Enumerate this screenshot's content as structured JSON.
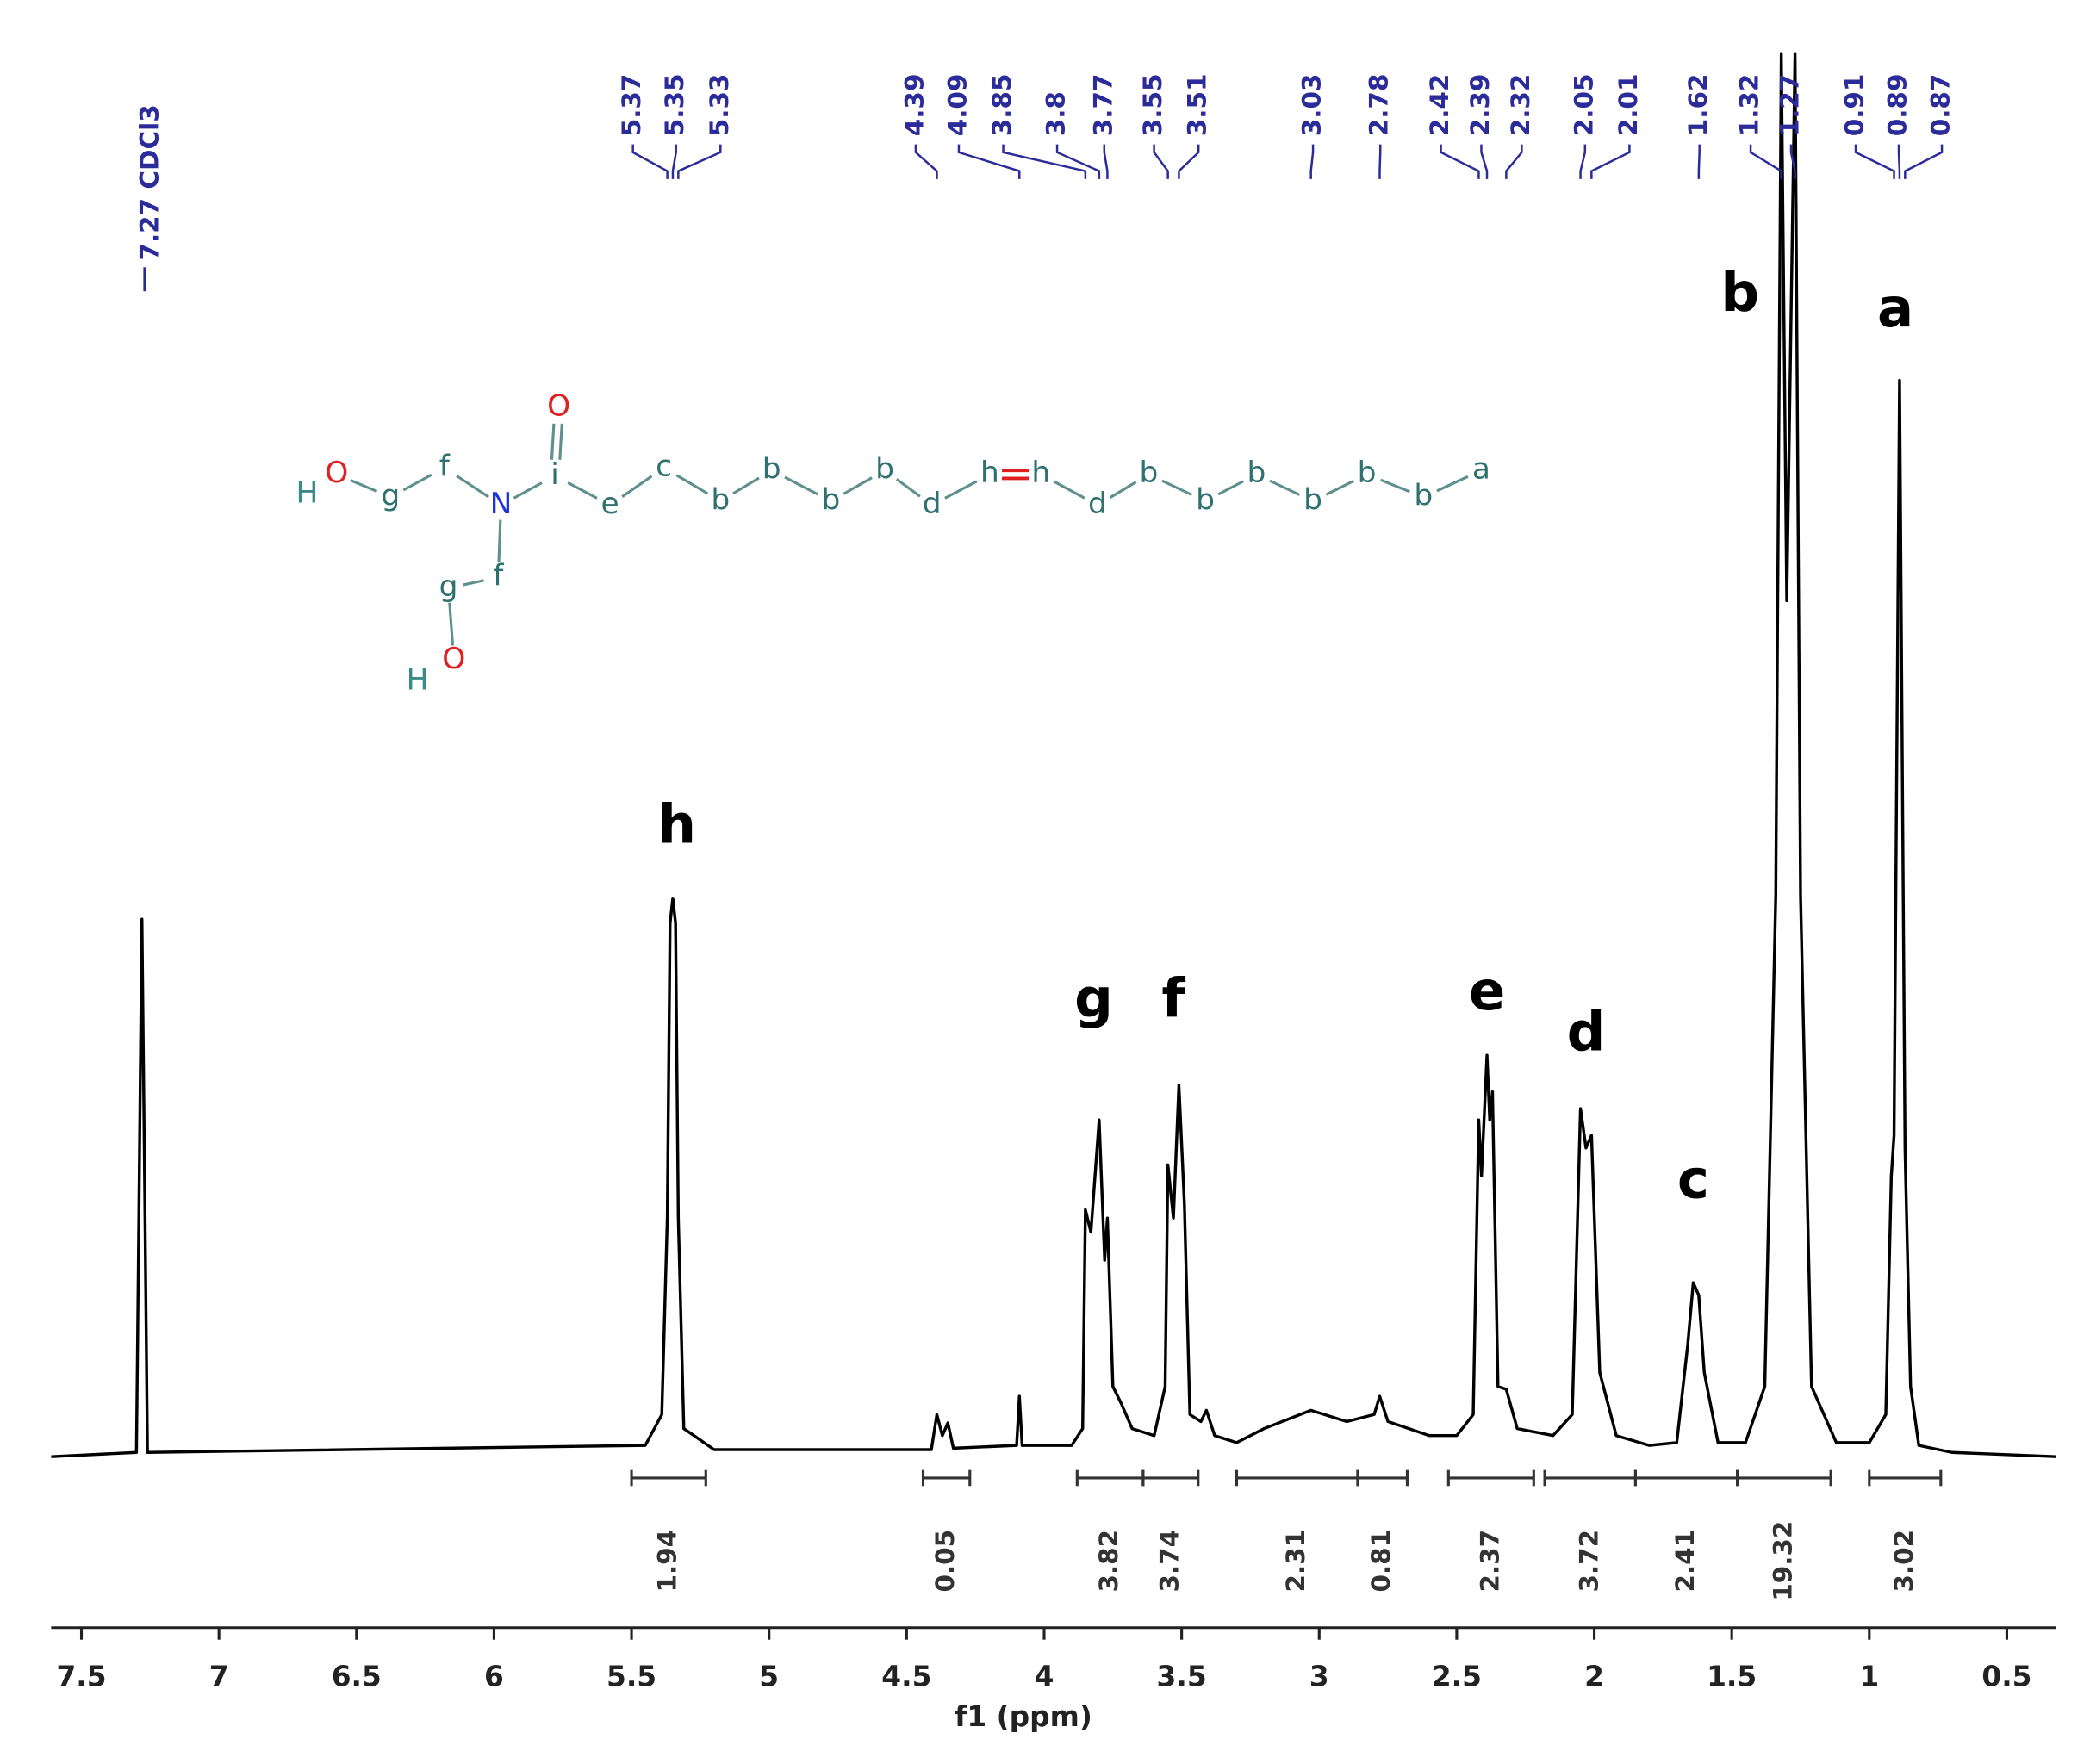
{
  "chart_data": {
    "type": "nmr",
    "x_label": "f1 (ppm)",
    "xlim": [
      7.61,
      0.32
    ],
    "xticks": [
      7.5,
      7.0,
      6.5,
      6.0,
      5.5,
      5.0,
      4.5,
      4.0,
      3.5,
      3.0,
      2.5,
      2.0,
      1.5,
      1.0,
      0.5
    ],
    "ylim": [
      0,
      100
    ],
    "color": "#000000",
    "x": [
      7.61,
      7.3,
      7.28,
      7.26,
      5.45,
      5.39,
      5.37,
      5.36,
      5.35,
      5.34,
      5.33,
      5.31,
      5.2,
      4.41,
      4.39,
      4.37,
      4.35,
      4.33,
      4.1,
      4.09,
      4.08,
      3.9,
      3.86,
      3.85,
      3.83,
      3.8,
      3.78,
      3.77,
      3.75,
      3.72,
      3.68,
      3.6,
      3.56,
      3.55,
      3.53,
      3.51,
      3.49,
      3.47,
      3.43,
      3.41,
      3.38,
      3.3,
      3.2,
      3.03,
      2.9,
      2.8,
      2.78,
      2.75,
      2.6,
      2.5,
      2.44,
      2.42,
      2.41,
      2.39,
      2.38,
      2.37,
      2.35,
      2.32,
      2.28,
      2.15,
      2.08,
      2.05,
      2.03,
      2.01,
      1.98,
      1.92,
      1.8,
      1.7,
      1.66,
      1.64,
      1.62,
      1.6,
      1.55,
      1.45,
      1.38,
      1.34,
      1.32,
      1.3,
      1.27,
      1.25,
      1.21,
      1.12,
      1.0,
      0.94,
      0.92,
      0.91,
      0.89,
      0.87,
      0.85,
      0.82,
      0.7,
      0.32
    ],
    "values": [
      0,
      0.3,
      38.3,
      0.3,
      0.8,
      3,
      17,
      38,
      39.8,
      38,
      17,
      2,
      0.5,
      0.5,
      3,
      1.5,
      2.4,
      0.6,
      0.8,
      4.3,
      0.8,
      0.8,
      2,
      17.6,
      16,
      24,
      14,
      17,
      5,
      3.8,
      2,
      1.5,
      5,
      20.8,
      17,
      26.5,
      18,
      3,
      2.5,
      3.3,
      1.5,
      1,
      2,
      3.3,
      2.5,
      3,
      4.3,
      2.5,
      1.5,
      1.5,
      3,
      24,
      20,
      28.6,
      24,
      26,
      5,
      4.8,
      2,
      1.5,
      3,
      24.8,
      22,
      22.9,
      6,
      1.5,
      0.8,
      1,
      8,
      12.4,
      11.5,
      6,
      1,
      1,
      5,
      40,
      100,
      61,
      100,
      40,
      5,
      1,
      1,
      3,
      20,
      22.9,
      76.7,
      21.9,
      5,
      0.8,
      0.3,
      0
    ],
    "peak_labels": [
      {
        "value": 7.27,
        "label": "7.27 CDCl3"
      },
      5.37,
      5.35,
      5.33,
      4.39,
      4.09,
      3.85,
      3.8,
      3.77,
      3.55,
      3.51,
      3.03,
      2.78,
      2.42,
      2.39,
      2.32,
      2.05,
      2.01,
      1.62,
      1.32,
      1.27,
      0.91,
      0.89,
      0.87
    ],
    "integrals": [
      {
        "from": 5.5,
        "to": 5.23,
        "value": 1.94
      },
      {
        "from": 4.44,
        "to": 4.27,
        "value": 0.05
      },
      {
        "from": 3.88,
        "to": 3.64,
        "value": 3.82
      },
      {
        "from": 3.64,
        "to": 3.44,
        "value": 3.74
      },
      {
        "from": 3.3,
        "to": 2.86,
        "value": 2.31
      },
      {
        "from": 2.86,
        "to": 2.68,
        "value": 0.81
      },
      {
        "from": 2.53,
        "to": 2.22,
        "value": 2.37
      },
      {
        "from": 2.18,
        "to": 1.85,
        "value": 3.72
      },
      {
        "from": 1.85,
        "to": 1.48,
        "value": 2.41
      },
      {
        "from": 1.48,
        "to": 1.14,
        "value": 19.32
      },
      {
        "from": 1.0,
        "to": 0.74,
        "value": 3.02
      }
    ],
    "assignments": [
      {
        "text": "h",
        "x": 5.335,
        "y": 44.8
      },
      {
        "text": "g",
        "x": 3.82,
        "y": 32.4
      },
      {
        "text": "f",
        "x": 3.53,
        "y": 32.4
      },
      {
        "text": "e",
        "x": 2.39,
        "y": 32.9
      },
      {
        "text": "d",
        "x": 2.03,
        "y": 30
      },
      {
        "text": "c",
        "x": 1.64,
        "y": 19.5
      },
      {
        "text": "b",
        "x": 1.47,
        "y": 82.7
      },
      {
        "text": "a",
        "x": 0.905,
        "y": 81.6
      }
    ],
    "structure": {
      "atoms": [
        "H",
        "O",
        "g",
        "f",
        "N",
        "i",
        "O",
        "e",
        "c",
        "b",
        "b",
        "b",
        "b",
        "d",
        "h",
        "h",
        "d",
        "b",
        "b",
        "b",
        "b",
        "b",
        "b",
        "a",
        "f",
        "g",
        "O",
        "H"
      ]
    }
  }
}
